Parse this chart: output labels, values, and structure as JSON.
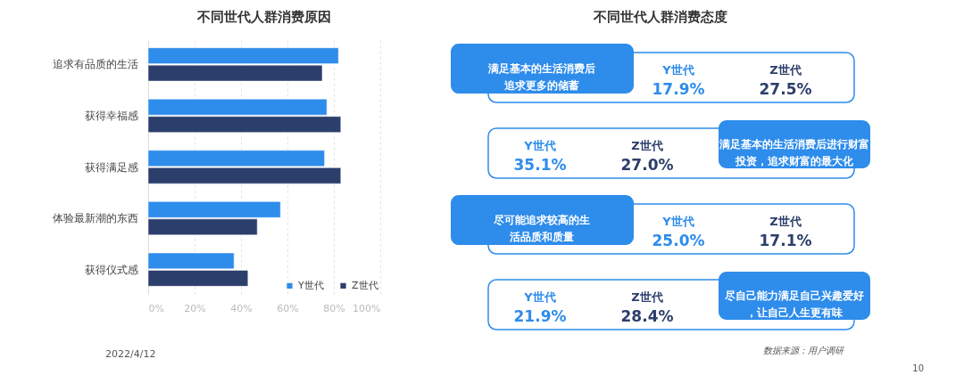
{
  "chart_data": [
    {
      "type": "bar",
      "orientation": "horizontal",
      "title": "不同世代人群消费原因",
      "categories": [
        "追求有品质的生活",
        "获得幸福感",
        "获得满足感",
        "体验最新潮的东西",
        "获得仪式感"
      ],
      "series": [
        {
          "name": "Y世代",
          "color": "#2e8ceb",
          "values": [
            82,
            77,
            76,
            57,
            37
          ]
        },
        {
          "name": "Z世代",
          "color": "#2c3e6b",
          "values": [
            75,
            83,
            83,
            47,
            43
          ]
        }
      ],
      "xlim": [
        0,
        100
      ],
      "xticks": [
        {
          "value": 0,
          "label": "0%"
        },
        {
          "value": 20,
          "label": "20%"
        },
        {
          "value": 40,
          "label": "40%"
        },
        {
          "value": 60,
          "label": "60%"
        },
        {
          "value": 80,
          "label": "80%"
        },
        {
          "value": 100,
          "label": "100%"
        }
      ],
      "grid": "x",
      "legend": "bottom right",
      "annotations": [
        "2022/4/12"
      ]
    },
    {
      "type": "other",
      "title": "不同世代人群消费态度",
      "categories": [
        "满足基本的生活消费后追求更多的储蓄",
        "满足基本的生活消费后进行财富投资，追求财富的最大化",
        "尽可能追求较高的生活品质和质量",
        "尽自己能力满足自己兴趣爱好，让自己人生更有味"
      ],
      "series": [
        {
          "name": "Y世代",
          "color": "#2e8ceb",
          "values": [
            17.9,
            35.1,
            25.0,
            21.9
          ],
          "value_labels": [
            "17.9%",
            "35.1%",
            "25.0%",
            "21.9%"
          ]
        },
        {
          "name": "Z世代",
          "color": "#2c3e6b",
          "values": [
            27.5,
            27.0,
            17.1,
            28.4
          ],
          "value_labels": [
            "27.5%",
            "27.0%",
            "17.1%",
            "28.4%"
          ]
        }
      ],
      "annotations": [
        "数据来源：用户调研",
        "10"
      ]
    }
  ]
}
